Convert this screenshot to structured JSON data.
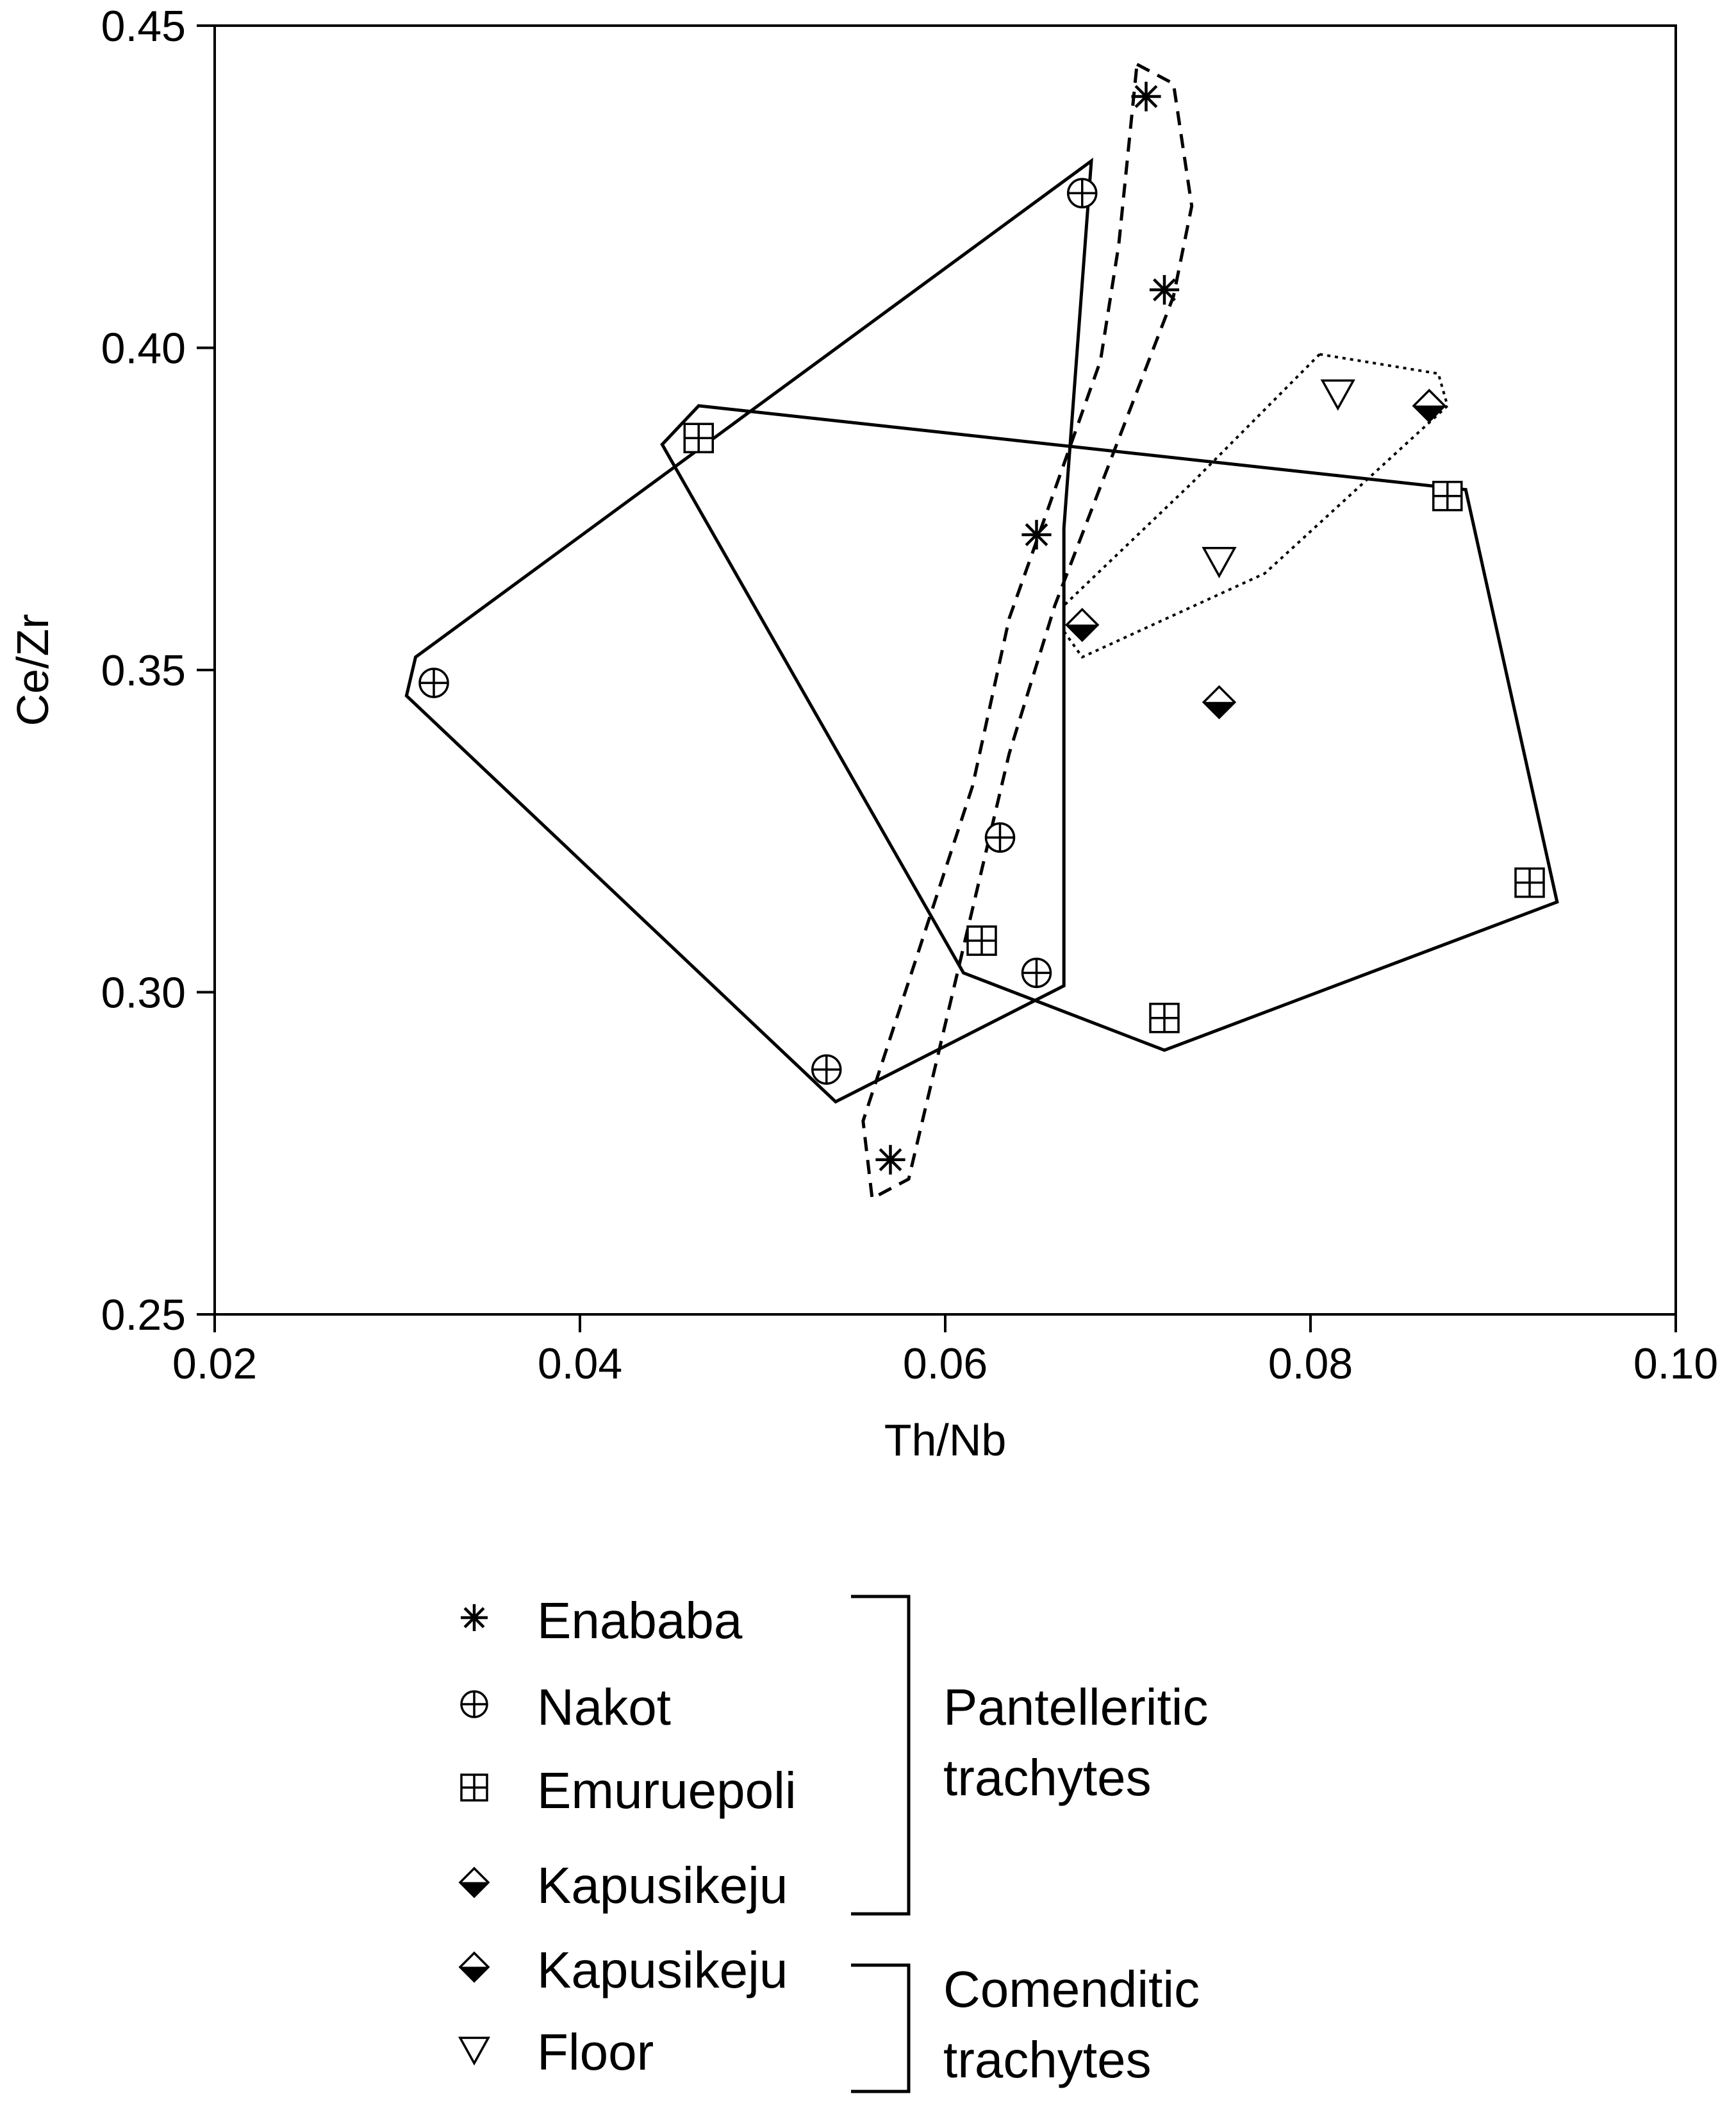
{
  "chart_data": {
    "type": "scatter",
    "xlabel": "Th/Nb",
    "ylabel": "Ce/Zr",
    "xlim": [
      0.02,
      0.1
    ],
    "ylim": [
      0.25,
      0.45
    ],
    "xticks": [
      "0.02",
      "0.04",
      "0.06",
      "0.08",
      "0.10"
    ],
    "yticks": [
      "0.25",
      "0.30",
      "0.35",
      "0.40",
      "0.45"
    ],
    "grid": false,
    "legend_position": "bottom",
    "series": [
      {
        "name": "Enababa",
        "marker": "asterisk",
        "points": [
          [
            0.071,
            0.439
          ],
          [
            0.072,
            0.409
          ],
          [
            0.065,
            0.371
          ],
          [
            0.057,
            0.274
          ]
        ],
        "envelope_style": "dashed",
        "envelope": [
          [
            0.0705,
            0.444
          ],
          [
            0.0725,
            0.441
          ],
          [
            0.0735,
            0.422
          ],
          [
            0.0725,
            0.408
          ],
          [
            0.066,
            0.36
          ],
          [
            0.0635,
            0.337
          ],
          [
            0.058,
            0.271
          ],
          [
            0.056,
            0.268
          ],
          [
            0.0555,
            0.28
          ],
          [
            0.0615,
            0.332
          ],
          [
            0.0635,
            0.358
          ],
          [
            0.0685,
            0.398
          ],
          [
            0.0695,
            0.416
          ]
        ]
      },
      {
        "name": "Nakot",
        "marker": "circle-plus",
        "points": [
          [
            0.0675,
            0.424
          ],
          [
            0.032,
            0.348
          ],
          [
            0.063,
            0.324
          ],
          [
            0.065,
            0.303
          ],
          [
            0.0535,
            0.288
          ]
        ],
        "envelope_style": "solid",
        "envelope": [
          [
            0.068,
            0.429
          ],
          [
            0.0665,
            0.372
          ],
          [
            0.0665,
            0.326
          ],
          [
            0.0665,
            0.301
          ],
          [
            0.054,
            0.283
          ],
          [
            0.0305,
            0.346
          ],
          [
            0.031,
            0.352
          ]
        ]
      },
      {
        "name": "Emuruepoli",
        "marker": "square-plus",
        "points": [
          [
            0.0465,
            0.386
          ],
          [
            0.0875,
            0.377
          ],
          [
            0.092,
            0.317
          ],
          [
            0.062,
            0.308
          ],
          [
            0.072,
            0.296
          ]
        ],
        "envelope_style": "solid",
        "envelope": [
          [
            0.0465,
            0.391
          ],
          [
            0.0885,
            0.378
          ],
          [
            0.0935,
            0.314
          ],
          [
            0.072,
            0.291
          ],
          [
            0.061,
            0.303
          ],
          [
            0.0445,
            0.385
          ]
        ]
      },
      {
        "name": "Kapusikeju",
        "group": "Pantelleritic trachytes",
        "marker": "diamond-half",
        "points": [
          [
            0.0675,
            0.357
          ],
          [
            0.075,
            0.345
          ]
        ]
      },
      {
        "name": "Kapusikeju",
        "group": "Comenditic trachytes",
        "marker": "diamond-half",
        "points": [
          [
            0.0865,
            0.391
          ]
        ]
      },
      {
        "name": "Floor",
        "group": "Comenditic trachytes",
        "marker": "triangle-down",
        "points": [
          [
            0.0815,
            0.393
          ],
          [
            0.075,
            0.367
          ]
        ],
        "envelope_style": "dotted",
        "envelope": [
          [
            0.0805,
            0.399
          ],
          [
            0.087,
            0.396
          ],
          [
            0.0875,
            0.391
          ],
          [
            0.0775,
            0.365
          ],
          [
            0.0675,
            0.352
          ],
          [
            0.0665,
            0.356
          ],
          [
            0.0665,
            0.36
          ],
          [
            0.0735,
            0.379
          ]
        ]
      }
    ],
    "legend": {
      "entries": [
        {
          "label": "Enababa",
          "marker": "asterisk"
        },
        {
          "label": "Nakot",
          "marker": "circle-plus"
        },
        {
          "label": "Emuruepoli",
          "marker": "square-plus"
        },
        {
          "label": "Kapusikeju",
          "marker": "diamond-half"
        },
        {
          "label": "Kapusikeju",
          "marker": "diamond-half"
        },
        {
          "label": "Floor",
          "marker": "triangle-down"
        }
      ],
      "groups": [
        {
          "lines": [
            "Pantelleritic",
            "trachytes"
          ],
          "entries": [
            0,
            1,
            2,
            3
          ]
        },
        {
          "lines": [
            "Comenditic",
            "trachytes"
          ],
          "entries": [
            4,
            5
          ]
        }
      ]
    }
  },
  "colors": {
    "background": "#ffffff",
    "ink": "#000000",
    "envelope": "#000000"
  }
}
